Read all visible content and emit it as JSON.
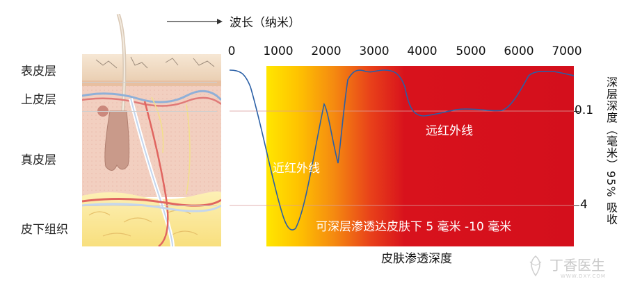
{
  "axis": {
    "title": "波长（纳米）",
    "ticks": [
      "0",
      "1000",
      "2000",
      "3000",
      "4000",
      "5000",
      "6000",
      "7000"
    ]
  },
  "skin_layers": [
    "表皮层",
    "上皮层",
    "真皮层",
    "皮下组织"
  ],
  "right_ticks": [
    "0.1",
    "4"
  ],
  "right_title": "深层深度（毫米）95% 吸收",
  "bottom_title": "皮肤渗透深度",
  "labels": {
    "near_ir": "近红外线",
    "far_ir": "远红外线",
    "penetration": "可深层渗透达皮肤下 5 毫米 -10 毫米"
  },
  "watermark": {
    "main": "丁香医生",
    "sub": "WWW.DXY.COM"
  },
  "colors": {
    "curve": "#2a5fa6",
    "red": "#d8121c",
    "yellow": "#ffe000",
    "orange": "#f07a10",
    "epidermis": "#f1dcc4",
    "dermis": "#f2cfc0",
    "subcutis": "#fbe79b"
  }
}
